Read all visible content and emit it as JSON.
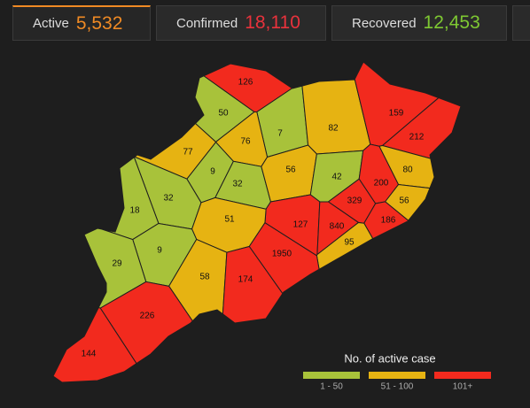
{
  "tabs": [
    {
      "label": "Active",
      "value": "5,532"
    },
    {
      "label": "Confirmed",
      "value": "18,110"
    },
    {
      "label": "Recovered",
      "value": "12,453"
    }
  ],
  "map": {
    "districts": [
      {
        "value": 126,
        "color": "#f22a1e"
      },
      {
        "value": 50,
        "color": "#a8c23a"
      },
      {
        "value": 7,
        "color": "#a8c23a"
      },
      {
        "value": 82,
        "color": "#e6b312"
      },
      {
        "value": 159,
        "color": "#f22a1e"
      },
      {
        "value": 212,
        "color": "#f22a1e"
      },
      {
        "value": 76,
        "color": "#e6b312"
      },
      {
        "value": 77,
        "color": "#e6b312"
      },
      {
        "value": 9,
        "color": "#a8c23a"
      },
      {
        "value": 32,
        "color": "#a8c23a"
      },
      {
        "value": 56,
        "color": "#e6b312"
      },
      {
        "value": 42,
        "color": "#a8c23a"
      },
      {
        "value": 80,
        "color": "#e6b312"
      },
      {
        "value": 200,
        "color": "#f22a1e"
      },
      {
        "value": 32,
        "color": "#a8c23a"
      },
      {
        "value": 18,
        "color": "#a8c23a"
      },
      {
        "value": 56,
        "color": "#e6b312"
      },
      {
        "value": 329,
        "color": "#f22a1e"
      },
      {
        "value": 127,
        "color": "#f22a1e"
      },
      {
        "value": 840,
        "color": "#f22a1e"
      },
      {
        "value": 186,
        "color": "#f22a1e"
      },
      {
        "value": 51,
        "color": "#e6b312"
      },
      {
        "value": 9,
        "color": "#a8c23a"
      },
      {
        "value": 29,
        "color": "#a8c23a"
      },
      {
        "value": 95,
        "color": "#e6b312"
      },
      {
        "value": 1950,
        "color": "#f22a1e"
      },
      {
        "value": 58,
        "color": "#e6b312"
      },
      {
        "value": 174,
        "color": "#f22a1e"
      },
      {
        "value": 226,
        "color": "#f22a1e"
      },
      {
        "value": 144,
        "color": "#f22a1e"
      }
    ]
  },
  "legend": {
    "title": "No. of active case",
    "items": [
      {
        "label": "1 - 50",
        "color": "#a8c23a"
      },
      {
        "label": "51 - 100",
        "color": "#e6b312"
      },
      {
        "label": "101+",
        "color": "#f22a1e"
      }
    ]
  }
}
